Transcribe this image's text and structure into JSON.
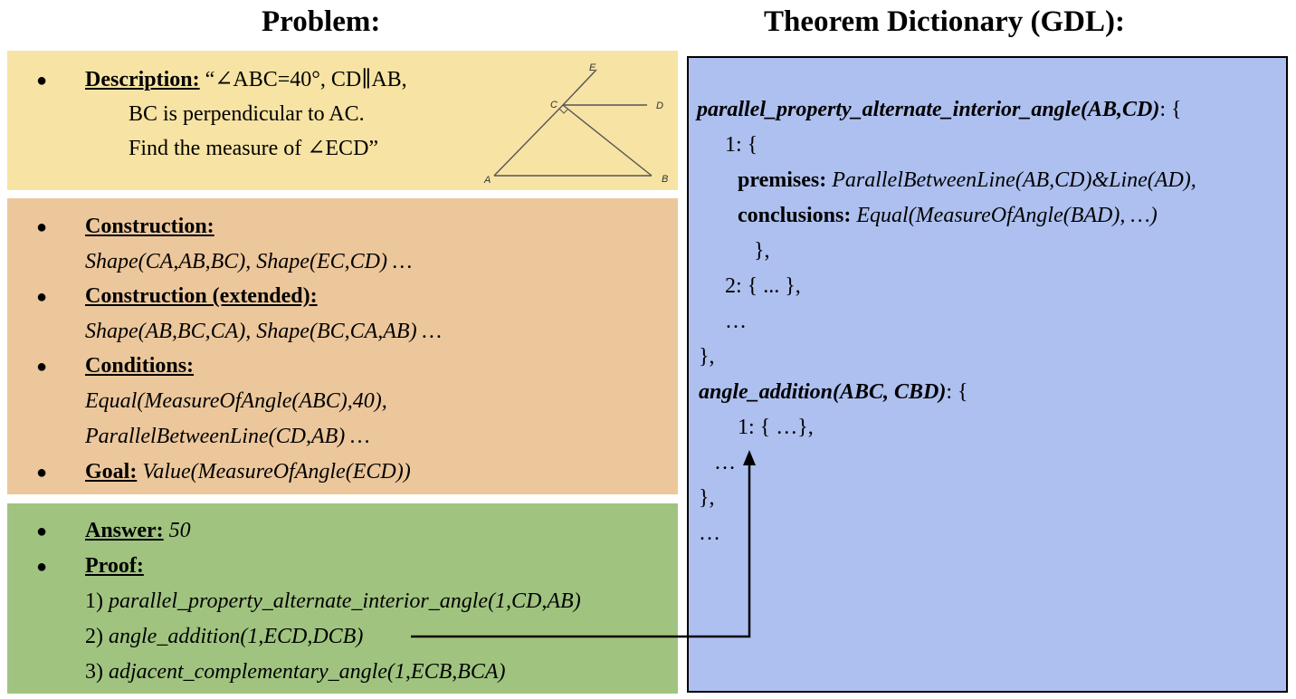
{
  "headings": {
    "problem": "Problem:",
    "gdl": "Theorem Dictionary (GDL):"
  },
  "description": {
    "bullet": "●",
    "label": "Description:",
    "line1": "“∠ABC=40°, CD∥AB,",
    "line2": "BC is perpendicular to AC.",
    "line3": "Find the measure of ∠ECD”"
  },
  "figure": {
    "point_labels": [
      "E",
      "C",
      "D",
      "A",
      "B"
    ]
  },
  "construction": {
    "bullet": "●",
    "construction_label": "Construction:",
    "construction_value": "Shape(CA,AB,BC), Shape(EC,CD) …",
    "extended_label": "Construction (extended):",
    "extended_value": "Shape(AB,BC,CA), Shape(BC,CA,AB) …",
    "conditions_label": "Conditions:",
    "conditions_value1": "Equal(MeasureOfAngle(ABC),40),",
    "conditions_value2": "ParallelBetweenLine(CD,AB) …",
    "goal_label": "Goal:",
    "goal_value": "Value(MeasureOfAngle(ECD))"
  },
  "answer": {
    "bullet": "●",
    "answer_label": "Answer:",
    "answer_value": "50",
    "proof_label": "Proof:",
    "steps": [
      {
        "num": "1)",
        "text": "parallel_property_alternate_interior_angle(1,CD,AB)"
      },
      {
        "num": "2)",
        "text": "angle_addition(1,ECD,DCB)"
      },
      {
        "num": "3)",
        "text": "adjacent_complementary_angle(1,ECB,BCA)"
      }
    ]
  },
  "gdl": {
    "t1_name": "parallel_property_alternate_interior_angle(AB,CD)",
    "t1_colon": ": {",
    "t1_k1": "1: {",
    "premises_label": "premises:",
    "premises_value": "ParallelBetweenLine(AB,CD)&Line(AD),",
    "conclusions_label": "conclusions:",
    "conclusions_value": "Equal(MeasureOfAngle(BAD), …)",
    "close_inner": "},",
    "t1_k2": "2: { ... },",
    "t1_more": "…",
    "close_t1": "},",
    "t2_name": "angle_addition(ABC, CBD)",
    "t2_colon": ": {",
    "t2_k1": "1: { …},",
    "t2_more": "…",
    "close_t2": "},",
    "more": "…"
  }
}
